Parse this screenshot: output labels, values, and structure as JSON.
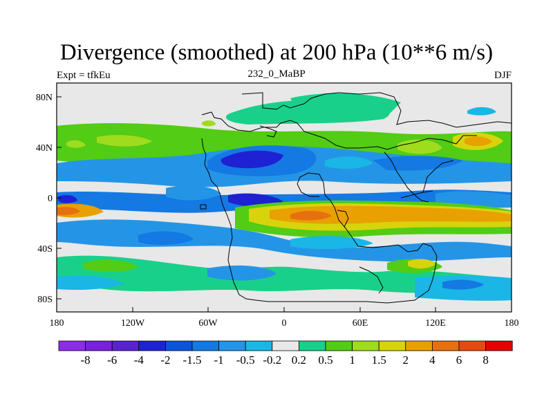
{
  "title": "Divergence (smoothed) at 200 hPa (10**6 m/s)",
  "left_label": "Expt = tfkEu",
  "center_label": "232_0_MaBP",
  "right_label": "DJF",
  "axes": {
    "x_ticks": [
      "180",
      "120W",
      "60W",
      "0",
      "60E",
      "120E",
      "180"
    ],
    "y_ticks": [
      "80N",
      "40N",
      "0",
      "40S",
      "80S"
    ]
  },
  "colorbar": {
    "labels": [
      "-8",
      "-6",
      "-4",
      "-2",
      "-1.5",
      "-1",
      "-0.5",
      "-0.2",
      "0.2",
      "0.5",
      "1",
      "1.5",
      "2",
      "4",
      "6",
      "8"
    ],
    "colors": [
      "#8c2ce6",
      "#7a20dc",
      "#5b22cf",
      "#1e22d3",
      "#0a55d8",
      "#1479e3",
      "#2495e6",
      "#1ab6e6",
      "#e8e8e8",
      "#19d08a",
      "#52cc15",
      "#9fdc1e",
      "#d7d40c",
      "#e8a100",
      "#e6700f",
      "#e54b10",
      "#e60000"
    ]
  }
}
